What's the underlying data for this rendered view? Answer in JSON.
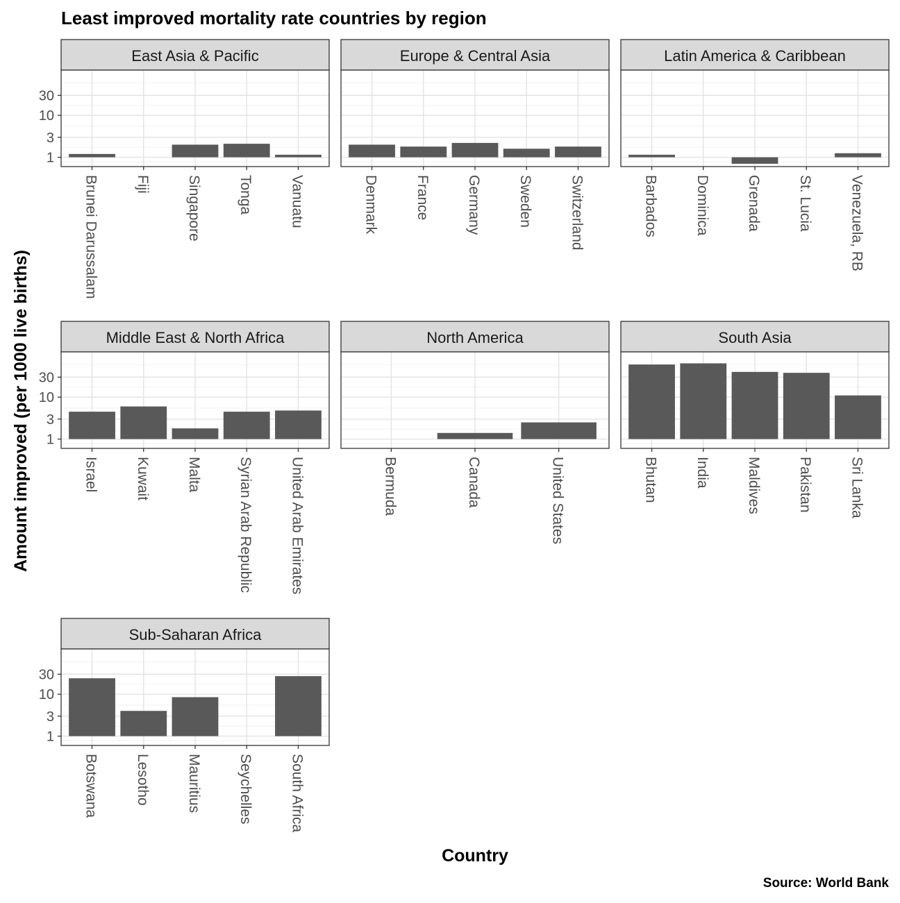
{
  "chart_data": {
    "type": "bar",
    "title": "Least improved mortality rate countries by region",
    "xlabel": "Country",
    "ylabel": "Amount improved (per 1000 live births)",
    "caption": "Source: World Bank",
    "y_scale": "log10",
    "y_ticks": [
      1,
      3,
      10,
      30
    ],
    "y_ticks_labels": [
      "1",
      "3",
      "10",
      "30"
    ],
    "ylim": [
      0.6,
      120
    ],
    "bar_color": "#595959",
    "strip_color": "#d9d9d9",
    "grid": true,
    "facets": [
      {
        "title": "East Asia & Pacific",
        "categories": [
          "Brunei Darussalam",
          "Fiji",
          "Singapore",
          "Tonga",
          "Vanuatu"
        ],
        "values": [
          1.2,
          null,
          2.0,
          2.1,
          1.15
        ]
      },
      {
        "title": "Europe & Central Asia",
        "categories": [
          "Denmark",
          "France",
          "Germany",
          "Sweden",
          "Switzerland"
        ],
        "values": [
          2.0,
          1.8,
          2.2,
          1.6,
          1.8
        ]
      },
      {
        "title": "Latin America & Caribbean",
        "categories": [
          "Barbados",
          "Dominica",
          "Grenada",
          "St. Lucia",
          "Venezuela, RB"
        ],
        "values": [
          1.15,
          null,
          0.7,
          null,
          1.25
        ]
      },
      {
        "title": "Middle East & North Africa",
        "categories": [
          "Israel",
          "Kuwait",
          "Malta",
          "Syrian Arab Republic",
          "United Arab Emirates"
        ],
        "values": [
          4.5,
          6.0,
          1.8,
          4.5,
          4.8
        ]
      },
      {
        "title": "North America",
        "categories": [
          "Bermuda",
          "Canada",
          "United States"
        ],
        "values": [
          null,
          1.4,
          2.5
        ]
      },
      {
        "title": "South Asia",
        "categories": [
          "Bhutan",
          "India",
          "Maldives",
          "Pakistan",
          "Sri Lanka"
        ],
        "values": [
          60,
          64,
          40,
          38,
          11
        ]
      },
      {
        "title": "Sub-Saharan Africa",
        "categories": [
          "Botswana",
          "Lesotho",
          "Mauritius",
          "Seychelles",
          "South Africa"
        ],
        "values": [
          24,
          4.0,
          8.5,
          null,
          27
        ]
      }
    ]
  }
}
